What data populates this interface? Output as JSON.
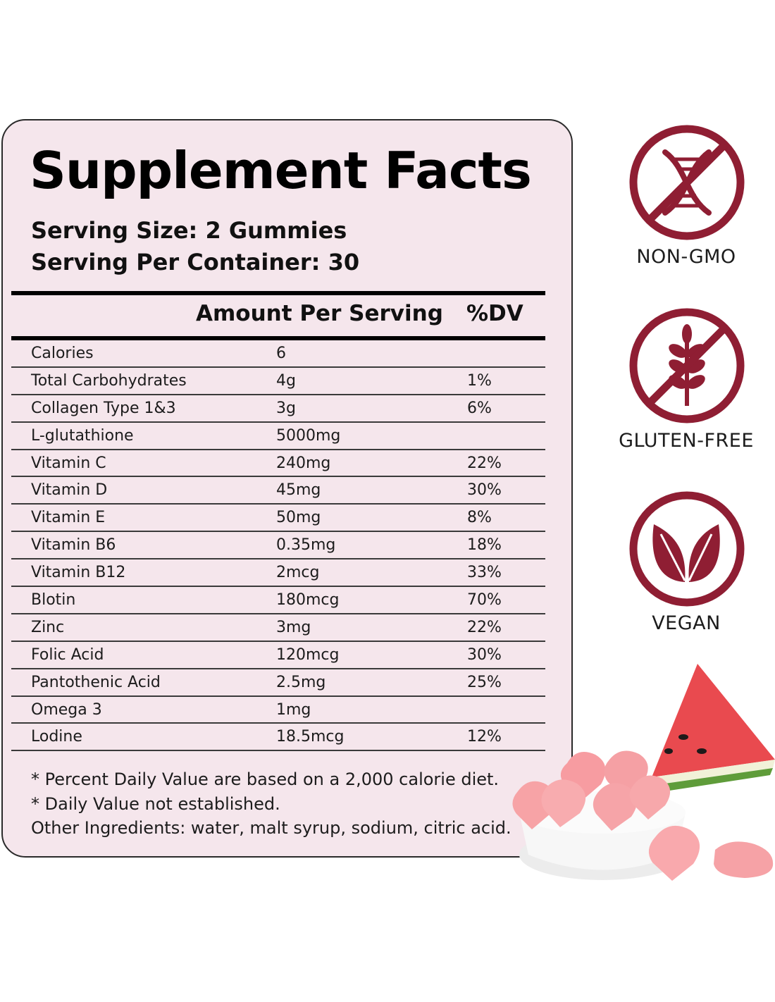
{
  "facts": {
    "title": "Supplement Facts",
    "serving_size": "Serving Size: 2 Gummies",
    "servings_per_container": "Serving Per Container: 30",
    "header_amount": "Amount Per Serving",
    "header_dv": "%DV",
    "rows": [
      {
        "name": "Calories",
        "amount": "6",
        "dv": ""
      },
      {
        "name": "Total Carbohydrates",
        "amount": "4g",
        "dv": "1%"
      },
      {
        "name": "Collagen Type 1&3",
        "amount": "3g",
        "dv": "6%"
      },
      {
        "name": "L-glutathione",
        "amount": "5000mg",
        "dv": ""
      },
      {
        "name": "Vitamin C",
        "amount": "240mg",
        "dv": "22%"
      },
      {
        "name": "Vitamin D",
        "amount": "45mg",
        "dv": "30%"
      },
      {
        "name": "Vitamin E",
        "amount": "50mg",
        "dv": "8%"
      },
      {
        "name": "Vitamin B6",
        "amount": "0.35mg",
        "dv": "18%"
      },
      {
        "name": "Vitamin B12",
        "amount": "2mcg",
        "dv": "33%"
      },
      {
        "name": "Blotin",
        "amount": "180mcg",
        "dv": "70%"
      },
      {
        "name": "Zinc",
        "amount": "3mg",
        "dv": "22%"
      },
      {
        "name": "Folic Acid",
        "amount": "120mcg",
        "dv": "30%"
      },
      {
        "name": "Pantothenic Acid",
        "amount": "2.5mg",
        "dv": "25%"
      },
      {
        "name": "Omega 3",
        "amount": "1mg",
        "dv": ""
      },
      {
        "name": "Lodine",
        "amount": "18.5mcg",
        "dv": "12%"
      }
    ],
    "notes": [
      "* Percent Daily Value are based on a 2,000 calorie diet.",
      "* Daily Value not established.",
      "Other Ingredients: water, malt syrup, sodium, citric acid."
    ]
  },
  "badges": [
    {
      "label": "NON-GMO",
      "icon": "dna-crossed-icon"
    },
    {
      "label": "GLUTEN-FREE",
      "icon": "wheat-crossed-icon"
    },
    {
      "label": "VEGAN",
      "icon": "leaves-icon"
    }
  ],
  "colors": {
    "panel_background": "#f5e6ec",
    "badge_maroon": "#8f1e33",
    "gummy_pink": "#f7a3a6",
    "watermelon_red": "#e94a4f",
    "rind_green": "#5f9c3a"
  }
}
